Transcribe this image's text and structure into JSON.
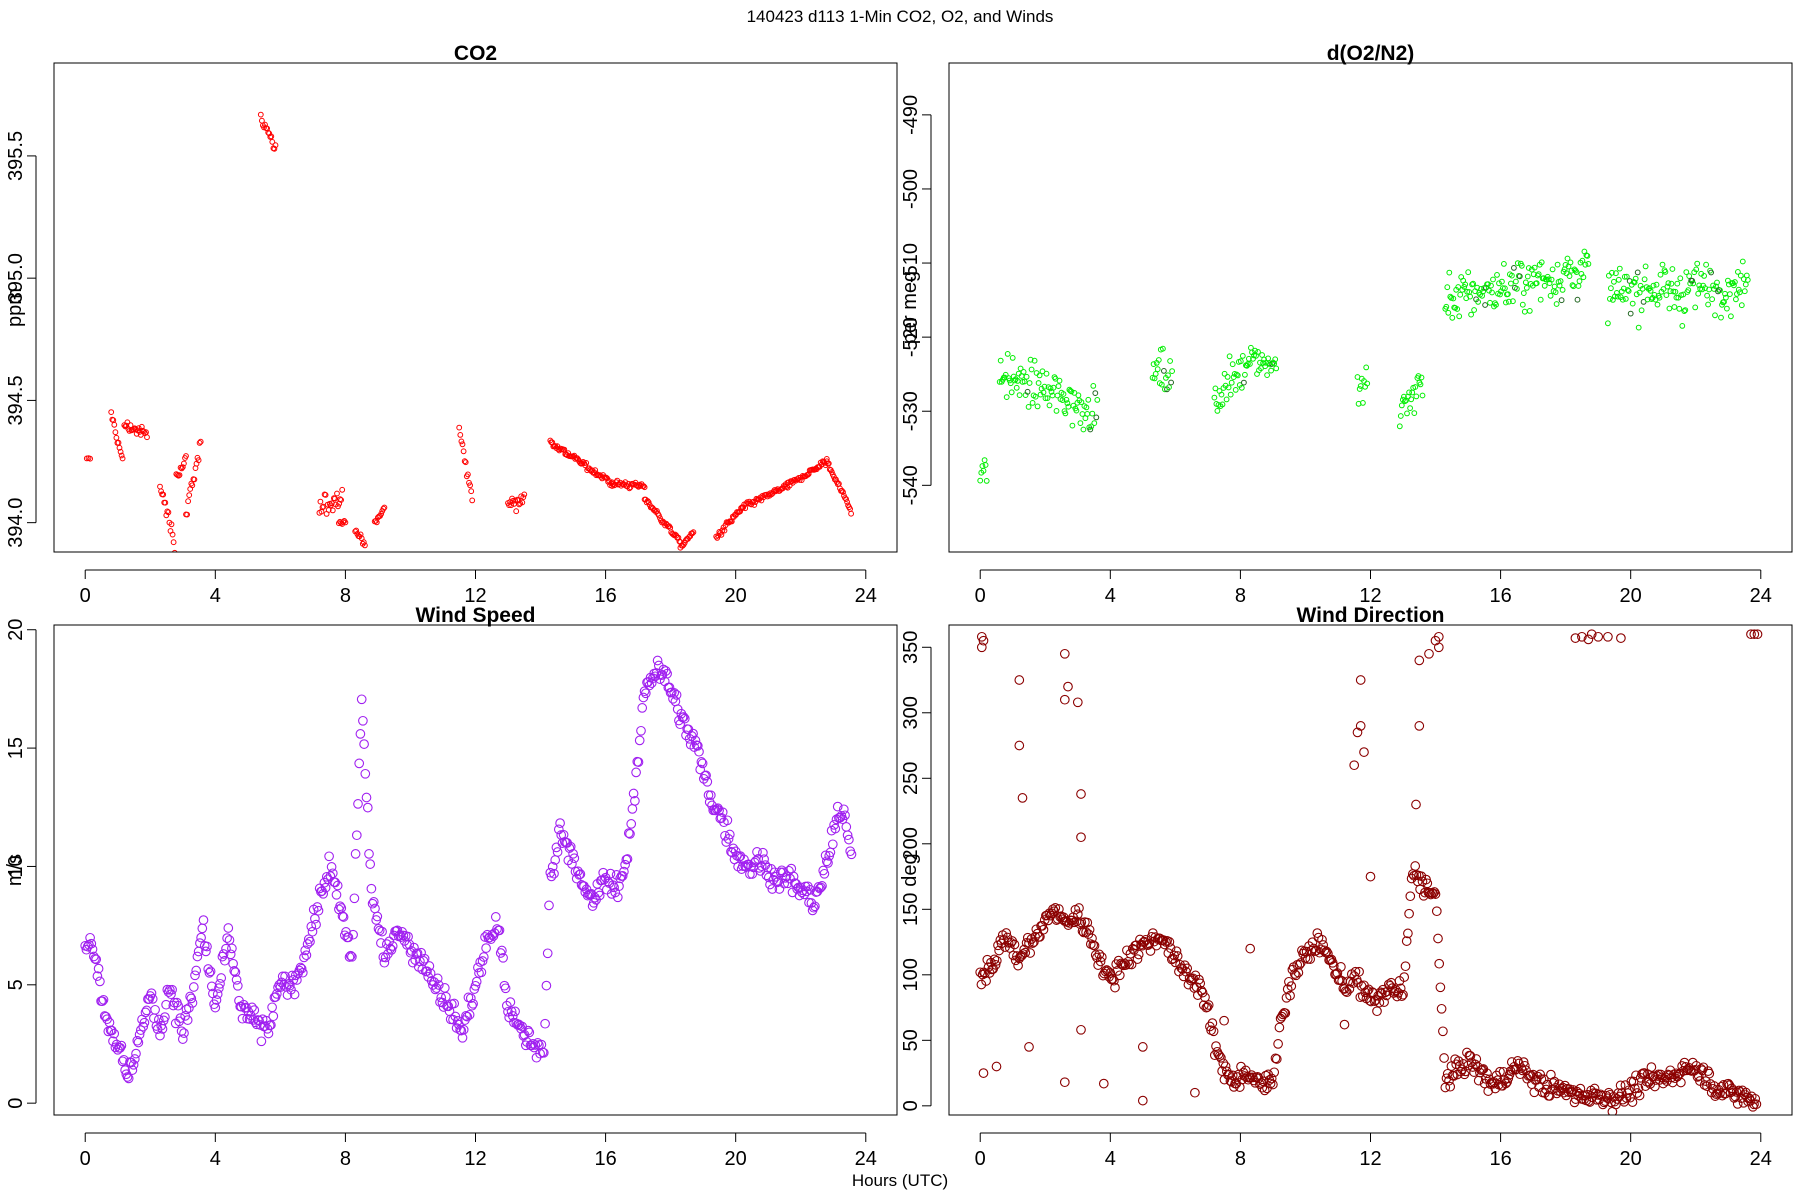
{
  "figure": {
    "title": "140423   d113   1-Min CO2, O2, and Winds",
    "xlabel": "Hours (UTC)"
  },
  "chart_data": [
    {
      "type": "scatter",
      "title": "CO2",
      "ylabel": "ppm",
      "xlim": [
        -0.96,
        24.96
      ],
      "ylim": [
        393.88,
        395.88
      ],
      "xticks": [
        0,
        4,
        8,
        12,
        16,
        20,
        24
      ],
      "yticks": [
        394.0,
        394.5,
        395.0,
        395.5
      ],
      "ytick_labels": [
        "394.0",
        "394.5",
        "395.0",
        "395.5"
      ],
      "marker_color": "#ff0000",
      "marker_size": "small",
      "segments": [
        {
          "start": 0.05,
          "end": 0.15,
          "base_start": 394.26,
          "base_end": 394.26,
          "noise": 0.01
        },
        {
          "start": 0.8,
          "end": 1.15,
          "base_start": 394.45,
          "base_end": 394.25,
          "noise": 0.05
        },
        {
          "start": 1.2,
          "end": 1.9,
          "base_start": 394.4,
          "base_end": 394.36,
          "noise": 0.05
        },
        {
          "start": 2.3,
          "end": 2.75,
          "base_start": 394.15,
          "base_end": 393.92,
          "noise": 0.08
        },
        {
          "start": 2.8,
          "end": 3.1,
          "base_start": 394.2,
          "base_end": 394.25,
          "noise": 0.07
        },
        {
          "start": 3.1,
          "end": 3.55,
          "base_start": 394.05,
          "base_end": 394.32,
          "noise": 0.08
        },
        {
          "start": 5.4,
          "end": 5.85,
          "base_start": 395.65,
          "base_end": 395.52,
          "noise": 0.08
        },
        {
          "start": 7.2,
          "end": 7.9,
          "base_start": 394.05,
          "base_end": 394.12,
          "noise": 0.1
        },
        {
          "start": 7.8,
          "end": 8.0,
          "base_start": 394.0,
          "base_end": 394.0,
          "noise": 0.03
        },
        {
          "start": 8.3,
          "end": 8.6,
          "base_start": 393.98,
          "base_end": 393.9,
          "noise": 0.04
        },
        {
          "start": 8.9,
          "end": 9.2,
          "base_start": 394.0,
          "base_end": 394.06,
          "noise": 0.03
        },
        {
          "start": 11.5,
          "end": 11.9,
          "base_start": 394.38,
          "base_end": 394.1,
          "noise": 0.05
        },
        {
          "start": 13.0,
          "end": 13.5,
          "base_start": 394.08,
          "base_end": 394.1,
          "noise": 0.07
        },
        {
          "start": 14.3,
          "end": 16.2,
          "base_start": 394.33,
          "base_end": 394.16,
          "noise": 0.03
        },
        {
          "start": 16.2,
          "end": 17.2,
          "base_start": 394.16,
          "base_end": 394.15,
          "noise": 0.03
        },
        {
          "start": 17.2,
          "end": 18.3,
          "base_start": 394.1,
          "base_end": 393.92,
          "noise": 0.03
        },
        {
          "start": 18.3,
          "end": 18.7,
          "base_start": 393.9,
          "base_end": 393.96,
          "noise": 0.02
        },
        {
          "start": 19.4,
          "end": 20.2,
          "base_start": 393.94,
          "base_end": 394.06,
          "noise": 0.03
        },
        {
          "start": 20.2,
          "end": 21.6,
          "base_start": 394.06,
          "base_end": 394.15,
          "noise": 0.03
        },
        {
          "start": 21.6,
          "end": 22.8,
          "base_start": 394.15,
          "base_end": 394.25,
          "noise": 0.03
        },
        {
          "start": 22.8,
          "end": 23.55,
          "base_start": 394.25,
          "base_end": 394.05,
          "noise": 0.03
        }
      ]
    },
    {
      "type": "scatter",
      "title": "d(O2/N2)",
      "ylabel": "per meg",
      "xlim": [
        -0.96,
        24.96
      ],
      "ylim": [
        -549,
        -483
      ],
      "xticks": [
        0,
        4,
        8,
        12,
        16,
        20,
        24
      ],
      "yticks": [
        -540,
        -530,
        -520,
        -510,
        -500,
        -490
      ],
      "ytick_labels": [
        "-540",
        "-530",
        "-520",
        "-510",
        "-500",
        "-490"
      ],
      "marker_color": "#00ee00",
      "accent_color": "#226622",
      "marker_size": "small",
      "segments": [
        {
          "start": 0.0,
          "end": 0.2,
          "base_start": -538,
          "base_end": -538,
          "noise": 6
        },
        {
          "start": 0.6,
          "end": 3.6,
          "base_start": -525,
          "base_end": -530,
          "noise": 7
        },
        {
          "start": 5.3,
          "end": 5.9,
          "base_start": -524,
          "base_end": -526,
          "noise": 6
        },
        {
          "start": 7.2,
          "end": 8.2,
          "base_start": -528,
          "base_end": -524,
          "noise": 6
        },
        {
          "start": 8.2,
          "end": 9.1,
          "base_start": -522,
          "base_end": -524,
          "noise": 5
        },
        {
          "start": 11.6,
          "end": 11.9,
          "base_start": -527,
          "base_end": -527,
          "noise": 8
        },
        {
          "start": 12.9,
          "end": 13.6,
          "base_start": -530,
          "base_end": -526,
          "noise": 7
        },
        {
          "start": 14.3,
          "end": 18.7,
          "base_start": -515,
          "base_end": -511,
          "noise": 8
        },
        {
          "start": 19.3,
          "end": 23.6,
          "base_start": -514,
          "base_end": -513,
          "noise": 8
        }
      ]
    },
    {
      "type": "scatter",
      "title": "Wind Speed",
      "ylabel": "m/s",
      "xlim": [
        -0.96,
        24.96
      ],
      "ylim": [
        -0.5,
        20.2
      ],
      "xticks": [
        0,
        4,
        8,
        12,
        16,
        20,
        24
      ],
      "yticks": [
        0,
        5,
        10,
        15,
        20
      ],
      "ytick_labels": [
        "0",
        "5",
        "10",
        "15",
        "20"
      ],
      "marker_color": "#a020f0",
      "marker_size": "large",
      "points": [
        [
          0.0,
          7.0
        ],
        [
          0.3,
          6.5
        ],
        [
          0.6,
          3.8
        ],
        [
          1.0,
          2.5
        ],
        [
          1.3,
          1.0
        ],
        [
          1.6,
          2.5
        ],
        [
          2.0,
          4.5
        ],
        [
          2.3,
          3.0
        ],
        [
          2.6,
          5.0
        ],
        [
          3.0,
          3.0
        ],
        [
          3.3,
          4.5
        ],
        [
          3.6,
          7.5
        ],
        [
          4.0,
          4.0
        ],
        [
          4.4,
          7.0
        ],
        [
          4.8,
          4.0
        ],
        [
          5.2,
          3.5
        ],
        [
          5.6,
          3.0
        ],
        [
          6.0,
          5.0
        ],
        [
          6.4,
          5.0
        ],
        [
          6.8,
          6.5
        ],
        [
          7.1,
          8.0
        ],
        [
          7.5,
          10.0
        ],
        [
          7.8,
          8.5
        ],
        [
          8.2,
          6.0
        ],
        [
          8.5,
          17.0
        ],
        [
          8.8,
          9.0
        ],
        [
          9.2,
          6.0
        ],
        [
          9.6,
          7.5
        ],
        [
          10.0,
          6.5
        ],
        [
          10.4,
          6.0
        ],
        [
          10.8,
          5.0
        ],
        [
          11.2,
          4.0
        ],
        [
          11.6,
          3.0
        ],
        [
          12.0,
          5.0
        ],
        [
          12.4,
          7.0
        ],
        [
          12.7,
          7.5
        ],
        [
          13.0,
          4.0
        ],
        [
          13.4,
          3.0
        ],
        [
          13.8,
          2.5
        ],
        [
          14.1,
          2.0
        ],
        [
          14.3,
          9.5
        ],
        [
          14.6,
          11.5
        ],
        [
          15.0,
          10.5
        ],
        [
          15.3,
          9.0
        ],
        [
          15.6,
          8.5
        ],
        [
          16.0,
          9.5
        ],
        [
          16.3,
          9.0
        ],
        [
          16.6,
          10.0
        ],
        [
          16.9,
          13.0
        ],
        [
          17.2,
          17.5
        ],
        [
          17.6,
          18.5
        ],
        [
          18.0,
          17.5
        ],
        [
          18.4,
          16.0
        ],
        [
          18.8,
          15.0
        ],
        [
          19.2,
          13.0
        ],
        [
          19.6,
          12.0
        ],
        [
          20.0,
          10.5
        ],
        [
          20.4,
          10.0
        ],
        [
          20.8,
          10.2
        ],
        [
          21.2,
          9.5
        ],
        [
          21.6,
          9.5
        ],
        [
          22.0,
          9.0
        ],
        [
          22.4,
          8.5
        ],
        [
          22.8,
          10.0
        ],
        [
          23.1,
          12.0
        ],
        [
          23.4,
          12.0
        ],
        [
          23.6,
          10.0
        ]
      ],
      "noise": 0.9
    },
    {
      "type": "scatter",
      "title": "Wind Direction",
      "ylabel": "deg",
      "xlim": [
        -0.96,
        24.96
      ],
      "ylim": [
        -7,
        367
      ],
      "xticks": [
        0,
        4,
        8,
        12,
        16,
        20,
        24
      ],
      "yticks": [
        0,
        50,
        100,
        150,
        200,
        250,
        300,
        350
      ],
      "ytick_labels": [
        "0",
        "50",
        "100",
        "150",
        "200",
        "250",
        "300",
        "350"
      ],
      "marker_color": "#8b0000",
      "marker_size": "large",
      "points": [
        [
          0.0,
          100
        ],
        [
          0.4,
          110
        ],
        [
          0.8,
          130
        ],
        [
          1.2,
          110
        ],
        [
          1.5,
          125
        ],
        [
          1.8,
          130
        ],
        [
          2.2,
          150
        ],
        [
          2.6,
          140
        ],
        [
          3.0,
          145
        ],
        [
          3.4,
          130
        ],
        [
          3.7,
          110
        ],
        [
          4.0,
          95
        ],
        [
          4.4,
          110
        ],
        [
          4.8,
          120
        ],
        [
          5.2,
          125
        ],
        [
          5.6,
          130
        ],
        [
          6.0,
          110
        ],
        [
          6.4,
          100
        ],
        [
          6.8,
          90
        ],
        [
          7.1,
          60
        ],
        [
          7.4,
          30
        ],
        [
          7.8,
          20
        ],
        [
          8.2,
          25
        ],
        [
          8.6,
          15
        ],
        [
          9.0,
          20
        ],
        [
          9.2,
          60
        ],
        [
          9.6,
          100
        ],
        [
          10.0,
          115
        ],
        [
          10.4,
          125
        ],
        [
          10.8,
          110
        ],
        [
          11.2,
          90
        ],
        [
          11.5,
          100
        ],
        [
          11.8,
          85
        ],
        [
          12.2,
          80
        ],
        [
          12.6,
          90
        ],
        [
          13.0,
          85
        ],
        [
          13.3,
          180
        ],
        [
          13.6,
          170
        ],
        [
          14.0,
          160
        ],
        [
          14.3,
          20
        ],
        [
          14.6,
          25
        ],
        [
          15.0,
          35
        ],
        [
          15.4,
          25
        ],
        [
          15.8,
          15
        ],
        [
          16.2,
          25
        ],
        [
          16.6,
          30
        ],
        [
          17.0,
          20
        ],
        [
          17.4,
          15
        ],
        [
          17.8,
          12
        ],
        [
          18.2,
          10
        ],
        [
          18.6,
          8
        ],
        [
          19.0,
          8
        ],
        [
          19.4,
          6
        ],
        [
          19.8,
          8
        ],
        [
          20.2,
          15
        ],
        [
          20.6,
          20
        ],
        [
          21.0,
          20
        ],
        [
          21.4,
          25
        ],
        [
          21.8,
          30
        ],
        [
          22.2,
          25
        ],
        [
          22.6,
          15
        ],
        [
          23.0,
          10
        ],
        [
          23.4,
          8
        ],
        [
          23.9,
          2
        ]
      ],
      "noise": 14,
      "extra_points": [
        [
          0.05,
          358
        ],
        [
          0.05,
          350
        ],
        [
          0.1,
          355
        ],
        [
          1.2,
          275
        ],
        [
          1.2,
          325
        ],
        [
          1.3,
          235
        ],
        [
          2.6,
          345
        ],
        [
          2.6,
          310
        ],
        [
          2.7,
          320
        ],
        [
          3.0,
          308
        ],
        [
          3.1,
          238
        ],
        [
          3.1,
          205
        ],
        [
          11.5,
          260
        ],
        [
          11.6,
          285
        ],
        [
          11.7,
          325
        ],
        [
          11.7,
          290
        ],
        [
          11.8,
          270
        ],
        [
          12.0,
          175
        ],
        [
          13.4,
          230
        ],
        [
          13.5,
          290
        ],
        [
          13.5,
          340
        ],
        [
          13.8,
          345
        ],
        [
          14.0,
          355
        ],
        [
          14.1,
          358
        ],
        [
          14.1,
          350
        ],
        [
          18.3,
          357
        ],
        [
          18.5,
          358
        ],
        [
          18.7,
          356
        ],
        [
          18.8,
          360
        ],
        [
          19.0,
          358
        ],
        [
          19.3,
          358
        ],
        [
          19.7,
          357
        ],
        [
          23.7,
          360
        ],
        [
          23.8,
          360
        ],
        [
          23.9,
          360
        ],
        [
          0.1,
          25
        ],
        [
          0.5,
          30
        ],
        [
          1.5,
          45
        ],
        [
          2.6,
          18
        ],
        [
          3.1,
          58
        ],
        [
          3.8,
          17
        ],
        [
          5.0,
          45
        ],
        [
          5.0,
          4
        ],
        [
          6.6,
          10
        ],
        [
          7.5,
          65
        ],
        [
          8.3,
          120
        ],
        [
          11.2,
          62
        ]
      ]
    }
  ]
}
